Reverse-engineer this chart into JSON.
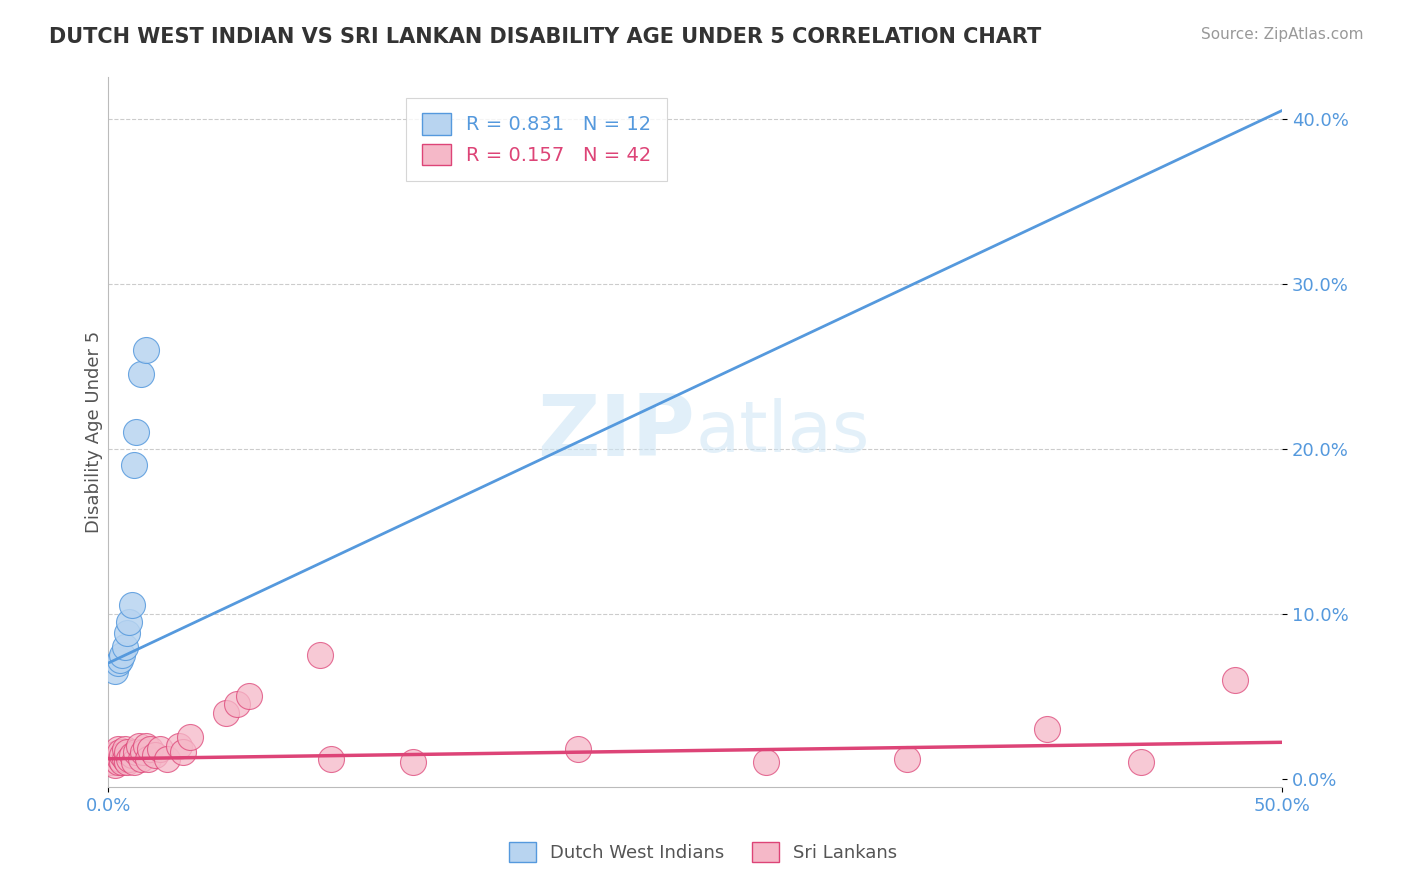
{
  "title": "DUTCH WEST INDIAN VS SRI LANKAN DISABILITY AGE UNDER 5 CORRELATION CHART",
  "source": "Source: ZipAtlas.com",
  "ylabel": "Disability Age Under 5",
  "ytick_values": [
    0.0,
    0.1,
    0.2,
    0.3,
    0.4
  ],
  "xlim": [
    0.0,
    0.5
  ],
  "ylim": [
    -0.005,
    0.425
  ],
  "blue_R": 0.831,
  "blue_N": 12,
  "pink_R": 0.157,
  "pink_N": 42,
  "blue_color": "#b8d4f0",
  "pink_color": "#f5b8c8",
  "blue_line_color": "#5599dd",
  "pink_line_color": "#dd4477",
  "legend_label_blue": "Dutch West Indians",
  "legend_label_pink": "Sri Lankans",
  "title_color": "#333333",
  "source_color": "#999999",
  "watermark_zip": "ZIP",
  "watermark_atlas": "atlas",
  "blue_x": [
    0.003,
    0.004,
    0.005,
    0.006,
    0.007,
    0.008,
    0.009,
    0.01,
    0.011,
    0.012,
    0.014,
    0.016
  ],
  "blue_y": [
    0.065,
    0.07,
    0.072,
    0.075,
    0.08,
    0.088,
    0.095,
    0.105,
    0.19,
    0.21,
    0.245,
    0.26
  ],
  "pink_x": [
    0.001,
    0.002,
    0.003,
    0.003,
    0.004,
    0.004,
    0.005,
    0.005,
    0.006,
    0.006,
    0.007,
    0.007,
    0.008,
    0.008,
    0.009,
    0.01,
    0.011,
    0.012,
    0.013,
    0.014,
    0.015,
    0.016,
    0.017,
    0.018,
    0.02,
    0.022,
    0.025,
    0.03,
    0.032,
    0.035,
    0.05,
    0.055,
    0.06,
    0.09,
    0.095,
    0.13,
    0.2,
    0.28,
    0.34,
    0.4,
    0.44,
    0.48
  ],
  "pink_y": [
    0.01,
    0.012,
    0.008,
    0.015,
    0.01,
    0.018,
    0.012,
    0.016,
    0.01,
    0.014,
    0.012,
    0.018,
    0.01,
    0.016,
    0.012,
    0.014,
    0.01,
    0.016,
    0.02,
    0.012,
    0.016,
    0.02,
    0.012,
    0.018,
    0.014,
    0.018,
    0.012,
    0.02,
    0.016,
    0.025,
    0.04,
    0.045,
    0.05,
    0.075,
    0.012,
    0.01,
    0.018,
    0.01,
    0.012,
    0.03,
    0.01,
    0.06
  ],
  "blue_line_x0": 0.0,
  "blue_line_x1": 0.5,
  "blue_line_y0": 0.07,
  "blue_line_y1": 0.405,
  "pink_line_x0": 0.0,
  "pink_line_x1": 0.5,
  "pink_line_y0": 0.012,
  "pink_line_y1": 0.022
}
